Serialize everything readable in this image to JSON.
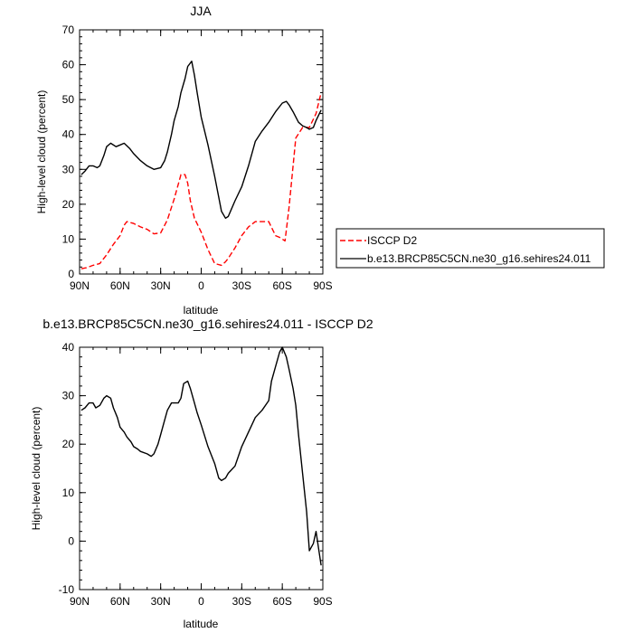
{
  "chart_data": [
    {
      "type": "line",
      "title": "JJA",
      "xlabel": "latitude",
      "ylabel": "High-level cloud (percent)",
      "xlim": [
        90,
        -90
      ],
      "ylim": [
        0,
        70
      ],
      "xticks": [
        90,
        60,
        30,
        0,
        -30,
        -60,
        -90
      ],
      "xtick_labels": [
        "90N",
        "60N",
        "30N",
        "0",
        "30S",
        "60S",
        "90S"
      ],
      "yticks": [
        0,
        10,
        20,
        30,
        40,
        50,
        60,
        70
      ],
      "ytick_labels": [
        "0",
        "10",
        "20",
        "30",
        "40",
        "50",
        "60",
        "70"
      ],
      "legend_position": "right",
      "series": [
        {
          "name": "ISCCP D2",
          "color": "#ff0000",
          "dash": "dashed",
          "x": [
            88.75,
            85,
            80,
            75,
            70,
            65,
            60,
            57,
            55,
            50,
            45,
            40,
            35,
            30,
            25,
            20,
            15,
            12,
            10,
            8,
            5,
            0,
            -5,
            -10,
            -15,
            -18,
            -20,
            -25,
            -30,
            -35,
            -40,
            -45,
            -50,
            -55,
            -58,
            -62,
            -65,
            -70,
            -75,
            -80,
            -85,
            -88.75
          ],
          "y": [
            1.5,
            1.8,
            2.5,
            3.0,
            5.5,
            8.5,
            11.0,
            14.0,
            15.0,
            14.5,
            13.5,
            12.8,
            11.5,
            11.8,
            15.5,
            21.5,
            28.5,
            28.5,
            26.0,
            21.0,
            16.0,
            12.0,
            7.0,
            3.0,
            2.5,
            3.5,
            4.5,
            7.5,
            11.0,
            13.5,
            15.0,
            15.0,
            15.0,
            11.0,
            10.5,
            9.5,
            19.0,
            39.0,
            42.0,
            42.0,
            46.0,
            52.0
          ]
        },
        {
          "name": "b.e13.BRCP85C5CN.ne30_g16.sehires24.011",
          "color": "#000000",
          "dash": "solid",
          "x": [
            88.75,
            86,
            83,
            80,
            77,
            75,
            72,
            70,
            67,
            63,
            60,
            57,
            53,
            50,
            45,
            40,
            35,
            30,
            27,
            25,
            22,
            20,
            17,
            15,
            12,
            10,
            7,
            5,
            3,
            0,
            -5,
            -10,
            -13,
            -15,
            -18,
            -20,
            -25,
            -30,
            -35,
            -40,
            -45,
            -50,
            -55,
            -60,
            -63,
            -65,
            -68,
            -72,
            -75,
            -78,
            -80,
            -83,
            -85,
            -88.75
          ],
          "y": [
            28.5,
            29.5,
            31.0,
            31.0,
            30.5,
            31.0,
            34.0,
            36.5,
            37.5,
            36.5,
            37.0,
            37.5,
            36.0,
            34.5,
            32.5,
            31.0,
            30.0,
            30.5,
            32.5,
            35.0,
            40.0,
            44.0,
            48.0,
            52.0,
            56.0,
            59.5,
            61.0,
            57.0,
            52.0,
            45.0,
            37.0,
            28.0,
            22.0,
            18.0,
            16.0,
            16.5,
            21.0,
            25.0,
            31.0,
            38.0,
            41.0,
            43.5,
            46.5,
            49.0,
            49.5,
            48.5,
            46.5,
            43.5,
            42.5,
            42.0,
            41.5,
            42.0,
            44.0,
            47.0
          ]
        }
      ]
    },
    {
      "type": "line",
      "title": "b.e13.BRCP85C5CN.ne30_g16.sehires24.011 - ISCCP D2",
      "xlabel": "latitude",
      "ylabel": "High-level cloud (percent)",
      "xlim": [
        90,
        -90
      ],
      "ylim": [
        -10,
        40
      ],
      "xticks": [
        90,
        60,
        30,
        0,
        -30,
        -60,
        -90
      ],
      "xtick_labels": [
        "90N",
        "60N",
        "30N",
        "0",
        "30S",
        "60S",
        "90S"
      ],
      "yticks": [
        -10,
        0,
        10,
        20,
        30,
        40
      ],
      "ytick_labels": [
        "-10",
        "0",
        "10",
        "20",
        "30",
        "40"
      ],
      "series": [
        {
          "color": "#000000",
          "dash": "solid",
          "x": [
            88.75,
            86,
            83,
            80,
            78,
            75,
            72,
            70,
            67,
            65,
            62,
            60,
            57,
            55,
            52,
            50,
            47,
            45,
            40,
            37,
            35,
            32,
            30,
            27,
            25,
            22,
            20,
            17,
            15,
            13,
            10,
            8,
            5,
            3,
            0,
            -5,
            -10,
            -13,
            -15,
            -18,
            -20,
            -25,
            -30,
            -35,
            -40,
            -45,
            -50,
            -52,
            -55,
            -58,
            -60,
            -63,
            -65,
            -68,
            -70,
            -72,
            -75,
            -78,
            -80,
            -83,
            -85,
            -88.75
          ],
          "y": [
            27.0,
            27.5,
            28.5,
            28.5,
            27.5,
            28.0,
            29.5,
            30.0,
            29.5,
            27.5,
            25.5,
            23.5,
            22.5,
            21.5,
            20.5,
            19.5,
            19.0,
            18.5,
            18.0,
            17.5,
            18.0,
            20.0,
            22.0,
            25.0,
            27.0,
            28.5,
            28.5,
            28.5,
            29.5,
            32.5,
            33.0,
            31.5,
            28.5,
            26.5,
            24.0,
            19.5,
            16.0,
            13.0,
            12.5,
            13.0,
            14.0,
            15.5,
            19.5,
            22.5,
            25.5,
            27.0,
            29.0,
            33.0,
            36.0,
            39.0,
            40.0,
            38.0,
            35.5,
            31.5,
            28.0,
            22.0,
            14.0,
            6.0,
            -2.0,
            -0.5,
            2.0,
            -5.0
          ]
        }
      ]
    }
  ]
}
